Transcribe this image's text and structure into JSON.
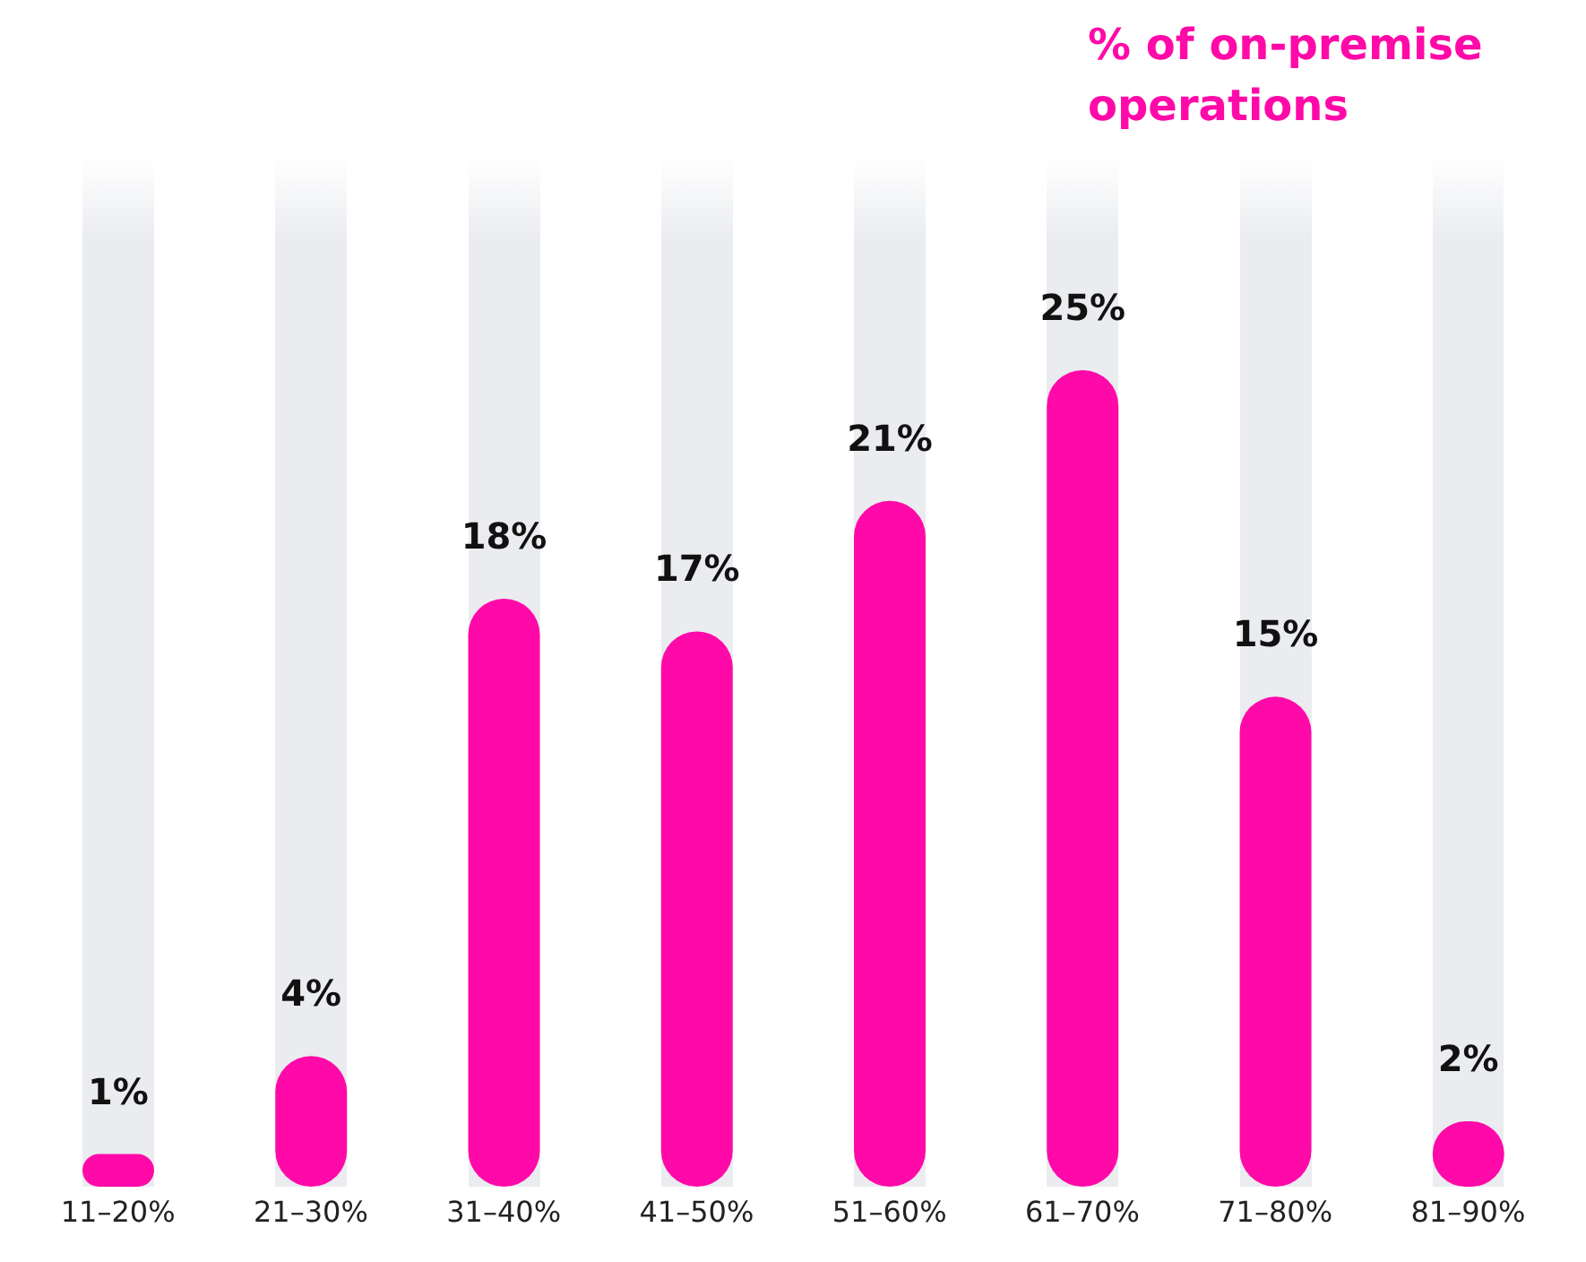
{
  "chart_data": {
    "type": "bar",
    "title": "% of on-premise operations",
    "categories": [
      "11–20%",
      "21–30%",
      "31–40%",
      "41–50%",
      "51–60%",
      "61–70%",
      "71–80%",
      "81–90%"
    ],
    "values": [
      1,
      4,
      18,
      17,
      21,
      25,
      15,
      2
    ],
    "value_labels": [
      "1%",
      "4%",
      "18%",
      "17%",
      "21%",
      "25%",
      "15%",
      "2%"
    ],
    "color": "#ff0aa8"
  }
}
